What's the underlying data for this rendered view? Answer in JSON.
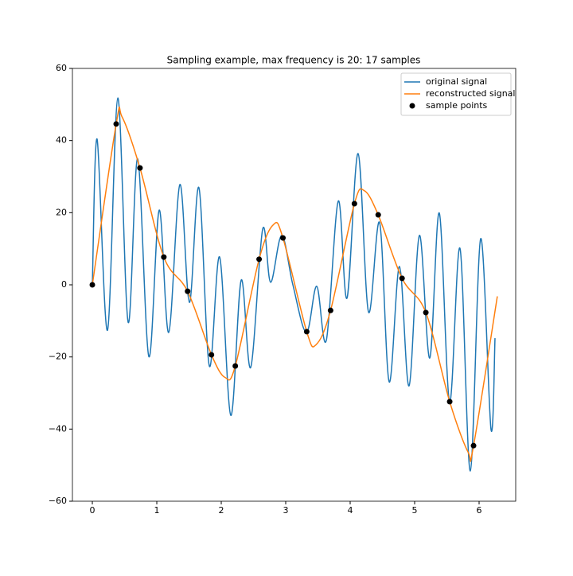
{
  "chart_data": {
    "type": "line",
    "title": "Sampling example, max frequency is 20: 17 samples",
    "xlim": [
      -0.309,
      6.568
    ],
    "ylim": [
      -60,
      60
    ],
    "xticks": [
      0,
      1,
      2,
      3,
      4,
      5,
      6
    ],
    "yticks": [
      {
        "value": -60,
        "label": "−60"
      },
      {
        "value": -40,
        "label": "−40"
      },
      {
        "value": -20,
        "label": "−20"
      },
      0,
      20,
      40,
      60
    ],
    "legend": "upper right",
    "series": [
      {
        "name": "original signal",
        "type": "line",
        "color": "#1f77b4",
        "x": [
          0,
          0.074,
          0.235,
          0.395,
          0.556,
          0.704,
          0.877,
          1.037,
          1.185,
          1.358,
          1.506,
          1.654,
          1.815,
          1.975,
          2.148,
          2.309,
          2.457,
          2.642,
          2.765,
          2.938,
          3.111,
          3.321,
          3.481,
          3.63,
          3.815,
          3.951,
          4.123,
          4.284,
          4.457,
          4.605,
          4.765,
          4.914,
          5.074,
          5.235,
          5.383,
          5.543,
          5.704,
          5.864,
          6.025,
          6.185,
          6.247
        ],
        "values": [
          0,
          40.4,
          -12.6,
          51.8,
          -10.4,
          34.9,
          -19.9,
          20.7,
          -13.2,
          27.8,
          -4.9,
          26.9,
          -22.5,
          7.7,
          -36.2,
          1.3,
          -22.9,
          15.4,
          0.7,
          13.7,
          0,
          -13.2,
          -0.4,
          -15.4,
          23.2,
          -3.7,
          36.4,
          -7.5,
          17.2,
          -26.9,
          5.1,
          -28.0,
          13.7,
          -20.3,
          19.9,
          -32.4,
          10.1,
          -51.6,
          12.8,
          -40.1,
          -14.8
        ]
      },
      {
        "name": "reconstructed signal",
        "type": "line",
        "color": "#ff7f0e",
        "x": [
          0,
          0.37,
          0.46,
          0.739,
          1.109,
          1.478,
          1.848,
          2.06,
          2.218,
          2.587,
          2.81,
          2.957,
          3.326,
          3.47,
          3.696,
          4.066,
          4.22,
          4.435,
          4.805,
          5.174,
          5.544,
          5.83,
          5.914,
          6.283
        ],
        "values": [
          0,
          44.6,
          46.6,
          32.4,
          7.7,
          -1.8,
          -19.4,
          -25.7,
          -22.5,
          7.1,
          16.7,
          13.0,
          -13.0,
          -16.6,
          -7.1,
          22.5,
          26.1,
          19.4,
          1.8,
          -7.7,
          -32.4,
          -46.4,
          -44.6,
          -3.2
        ]
      },
      {
        "name": "sample points",
        "type": "scatter",
        "color": "#000000",
        "x": [
          0,
          0.37,
          0.739,
          1.109,
          1.478,
          1.848,
          2.218,
          2.587,
          2.957,
          3.326,
          3.696,
          4.066,
          4.435,
          4.805,
          5.174,
          5.544,
          5.914
        ],
        "values": [
          0,
          44.6,
          32.4,
          7.7,
          -1.8,
          -19.4,
          -22.5,
          7.1,
          13.0,
          -13.0,
          -7.1,
          22.5,
          19.4,
          1.8,
          -7.7,
          -32.4,
          -44.6
        ]
      }
    ]
  }
}
